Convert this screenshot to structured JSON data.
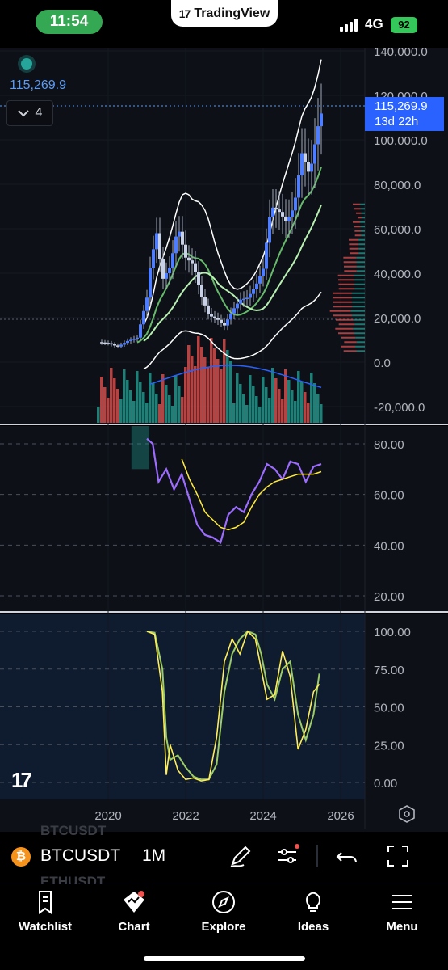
{
  "status_bar": {
    "time": "11:54",
    "network": "4G",
    "battery": "92"
  },
  "app": {
    "brand": "TradingView"
  },
  "chart_header": {
    "last_price": "115,269.9",
    "collapse_count": "4"
  },
  "price_tag": {
    "price": "115,269.9",
    "countdown": "13d 22h"
  },
  "toolbar": {
    "symbol": "BTCUSDT",
    "interval": "1M",
    "ghost_symbols": [
      "BTCUSDT",
      "ETHUSDT"
    ]
  },
  "tabs": [
    {
      "label": "Watchlist",
      "icon": "bookmark-icon"
    },
    {
      "label": "Chart",
      "icon": "chart-icon"
    },
    {
      "label": "Explore",
      "icon": "compass-icon"
    },
    {
      "label": "Ideas",
      "icon": "lightbulb-icon"
    },
    {
      "label": "Menu",
      "icon": "hamburger-icon"
    }
  ],
  "colors": {
    "up": "#26a69a",
    "down": "#ef5350",
    "candle_body": "#2962ff",
    "accent": "#2962ff",
    "rsi": "#9c6cff",
    "rsi_ma": "#ffeb3b",
    "stoch_k": "#9ccc65",
    "stoch_d": "#ffee58"
  },
  "chart_data": [
    {
      "type": "line",
      "title": "BTCUSDT 1M",
      "x": [
        2019.75,
        2020.0,
        2020.25,
        2020.5,
        2020.75,
        2021.0,
        2021.1,
        2021.25,
        2021.4,
        2021.6,
        2021.8,
        2022.0,
        2022.2,
        2022.4,
        2022.6,
        2022.8,
        2023.0,
        2023.2,
        2023.4,
        2023.6,
        2023.8,
        2024.0,
        2024.2,
        2024.4,
        2024.6,
        2024.8,
        2025.0,
        2025.2,
        2025.4,
        2025.55
      ],
      "series": [
        {
          "values": [
            9000,
            8500,
            7000,
            9500,
            11000,
            29000,
            45000,
            58000,
            37000,
            43000,
            61000,
            47000,
            44000,
            30000,
            21000,
            19500,
            16500,
            23000,
            28000,
            29000,
            34000,
            42000,
            70000,
            68000,
            63000,
            70000,
            94000,
            84000,
            105000,
            115269.9
          ]
        }
      ],
      "yticks": [
        "140,000.0",
        "120,000.0",
        "100,000.0",
        "80,000.0",
        "60,000.0",
        "40,000.0",
        "20,000.0",
        "0.0",
        "-20,000.0"
      ],
      "ylim": [
        -20000,
        140000
      ],
      "xticks": [
        "2020",
        "2022",
        "2024",
        "2026"
      ],
      "grid": true
    },
    {
      "type": "line",
      "x": [
        2021.0,
        2021.15,
        2021.3,
        2021.5,
        2021.7,
        2021.9,
        2022.1,
        2022.3,
        2022.5,
        2022.7,
        2022.9,
        2023.1,
        2023.3,
        2023.5,
        2023.7,
        2023.9,
        2024.1,
        2024.3,
        2024.5,
        2024.7,
        2024.9,
        2025.1,
        2025.3,
        2025.5
      ],
      "series": [
        {
          "values": [
            82,
            80,
            65,
            70,
            62,
            68,
            58,
            48,
            44,
            43,
            41,
            52,
            55,
            53,
            60,
            65,
            72,
            70,
            66,
            73,
            72,
            65,
            71,
            72
          ]
        },
        {
          "values": [
            null,
            null,
            null,
            null,
            null,
            74,
            66,
            60,
            53,
            50,
            47,
            46,
            47,
            49,
            55,
            60,
            63,
            65,
            66,
            67,
            68,
            68,
            68,
            69
          ]
        }
      ],
      "yticks": [
        "80.00",
        "60.00",
        "40.00",
        "20.00"
      ],
      "ylim": [
        14,
        88
      ],
      "grid": true
    },
    {
      "type": "line",
      "x": [
        2021.0,
        2021.2,
        2021.4,
        2021.5,
        2021.6,
        2021.8,
        2022.0,
        2022.2,
        2022.4,
        2022.6,
        2022.8,
        2023.0,
        2023.2,
        2023.4,
        2023.6,
        2023.8,
        2023.95,
        2024.1,
        2024.3,
        2024.5,
        2024.7,
        2024.9,
        2025.1,
        2025.3,
        2025.45
      ],
      "series": [
        {
          "values": [
            100,
            98,
            60,
            5,
            25,
            8,
            2,
            3,
            1,
            2,
            30,
            80,
            95,
            85,
            100,
            95,
            75,
            55,
            58,
            87,
            70,
            22,
            35,
            60,
            65
          ]
        },
        {
          "values": [
            100,
            99,
            75,
            30,
            15,
            18,
            10,
            4,
            2,
            2,
            12,
            60,
            85,
            95,
            100,
            98,
            85,
            65,
            55,
            75,
            80,
            45,
            28,
            45,
            72
          ]
        }
      ],
      "yticks": [
        "100.00",
        "75.00",
        "50.00",
        "25.00",
        "0.00"
      ],
      "ylim": [
        0,
        100
      ],
      "grid": true
    }
  ]
}
